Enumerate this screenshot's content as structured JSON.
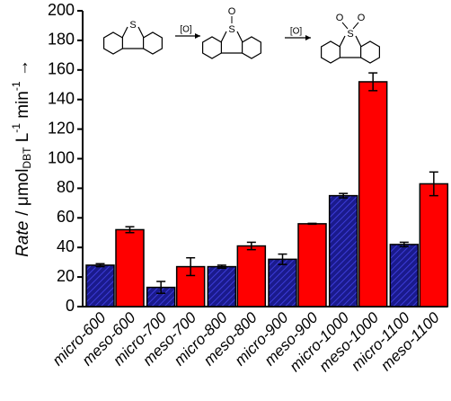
{
  "chart_data": {
    "type": "bar",
    "categories": [
      "micro-600",
      "meso-600",
      "micro-700",
      "meso-700",
      "micro-800",
      "meso-800",
      "micro-900",
      "meso-900",
      "micro-1000",
      "meso-1000",
      "micro-1100",
      "meso-1100"
    ],
    "values": [
      28,
      52,
      13,
      27,
      27,
      41,
      32,
      56,
      75,
      152,
      42,
      83
    ],
    "errors": [
      1,
      2,
      4,
      6,
      1,
      2.5,
      3.5,
      0.3,
      1.5,
      6,
      1.5,
      8
    ],
    "bar_colors": [
      "#1a1a8c",
      "#ff0000",
      "#1a1a8c",
      "#ff0000",
      "#1a1a8c",
      "#ff0000",
      "#1a1a8c",
      "#ff0000",
      "#1a1a8c",
      "#ff0000",
      "#1a1a8c",
      "#ff0000"
    ],
    "hatched": [
      true,
      false,
      true,
      false,
      true,
      false,
      true,
      false,
      true,
      false,
      true,
      false
    ],
    "ylim": [
      0,
      200
    ],
    "yticks": [
      0,
      20,
      40,
      60,
      80,
      100,
      120,
      140,
      160,
      180,
      200
    ],
    "y_label": {
      "rate": "Rate",
      "unit": "/  μmol",
      "sub": "DBT",
      "l": " L",
      "exp1": "-1",
      "min": " min",
      "exp2": "-1",
      "arrow": " →"
    },
    "annotations": [
      "[O]",
      "[O]"
    ],
    "atom_labels": [
      "S",
      "S",
      "O",
      "S",
      "O",
      "O"
    ]
  }
}
